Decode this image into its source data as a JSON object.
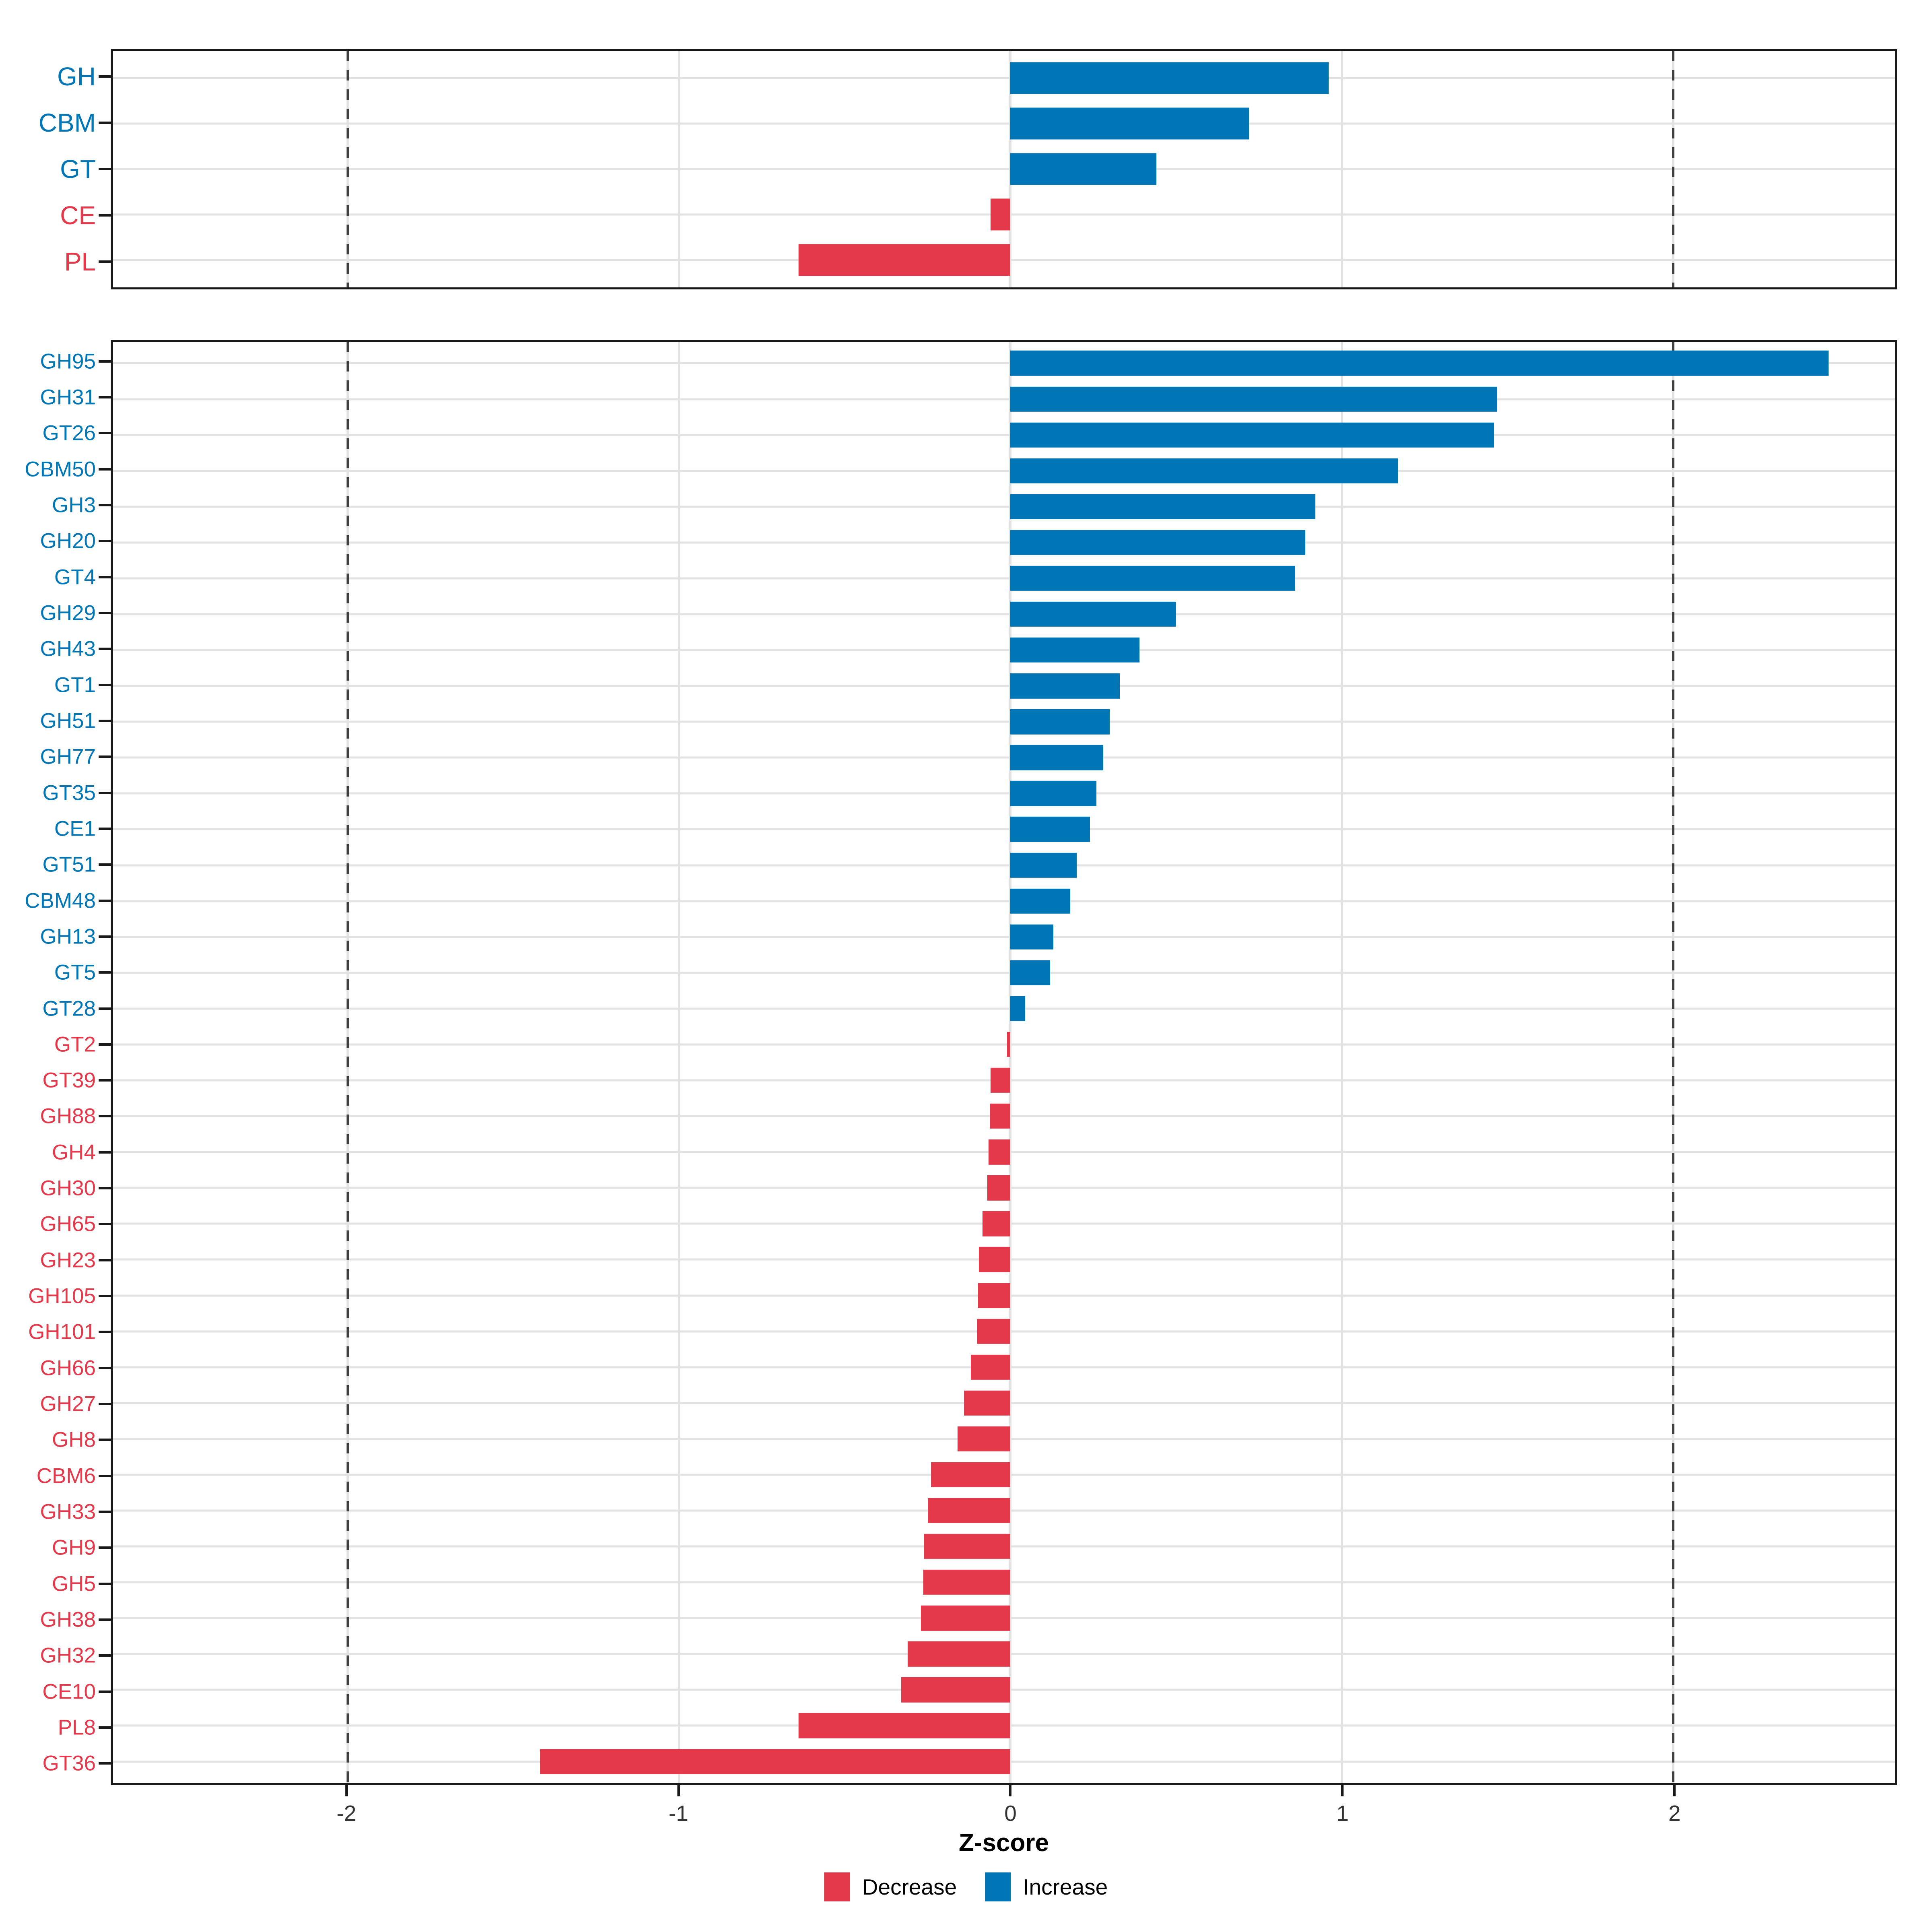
{
  "axis": {
    "label": "Z-score",
    "domain": [
      -2.71,
      2.67
    ],
    "ticks": [
      {
        "value": -2,
        "label": "-2"
      },
      {
        "value": -1,
        "label": "-1"
      },
      {
        "value": 0,
        "label": "0"
      },
      {
        "value": 1,
        "label": "1"
      },
      {
        "value": 2,
        "label": "2"
      }
    ],
    "dashed_lines_at": [
      -2,
      2
    ],
    "grid_on": true
  },
  "colors": {
    "increase": "#0076b6",
    "decrease": "#e4394b",
    "grid": "#e2e2e2",
    "dashed_line": "#404040",
    "panel_border": "#1a1a1a",
    "tick_text": "#333333"
  },
  "legend": {
    "items": [
      {
        "label": "Decrease",
        "color": "#e4394b",
        "direction": "decrease"
      },
      {
        "label": "Increase",
        "color": "#0076b6",
        "direction": "increase"
      }
    ]
  },
  "chart_data": [
    {
      "type": "bar",
      "orientation": "horizontal",
      "panel": "top",
      "title": "",
      "xlabel": "Z-score",
      "ylabel": "",
      "xlim": [
        -2.71,
        2.67
      ],
      "categories": [
        "GH",
        "CBM",
        "GT",
        "CE",
        "PL"
      ],
      "values": [
        0.96,
        0.72,
        0.44,
        -0.06,
        -0.64
      ],
      "directions": [
        "increase",
        "increase",
        "increase",
        "decrease",
        "decrease"
      ]
    },
    {
      "type": "bar",
      "orientation": "horizontal",
      "panel": "bottom",
      "title": "",
      "xlabel": "Z-score",
      "ylabel": "",
      "xlim": [
        -2.71,
        2.67
      ],
      "categories": [
        "GH95",
        "GH31",
        "GT26",
        "CBM50",
        "GH3",
        "GH20",
        "GT4",
        "GH29",
        "GH43",
        "GT1",
        "GH51",
        "GH77",
        "GT35",
        "CE1",
        "GT51",
        "CBM48",
        "GH13",
        "GT5",
        "GT28",
        "GT2",
        "GT39",
        "GH88",
        "GH4",
        "GH30",
        "GH65",
        "GH23",
        "GH105",
        "GH101",
        "GH66",
        "GH27",
        "GH8",
        "CBM6",
        "GH33",
        "GH9",
        "GH5",
        "GH38",
        "GH32",
        "CE10",
        "PL8",
        "GT36"
      ],
      "values": [
        2.47,
        1.47,
        1.46,
        1.17,
        0.92,
        0.89,
        0.86,
        0.5,
        0.39,
        0.33,
        0.3,
        0.28,
        0.26,
        0.24,
        0.2,
        0.18,
        0.13,
        0.12,
        0.045,
        -0.01,
        -0.06,
        -0.063,
        -0.066,
        -0.07,
        -0.085,
        -0.095,
        -0.098,
        -0.1,
        -0.12,
        -0.14,
        -0.16,
        -0.24,
        -0.25,
        -0.26,
        -0.263,
        -0.27,
        -0.31,
        -0.33,
        -0.64,
        -1.42
      ],
      "directions": [
        "increase",
        "increase",
        "increase",
        "increase",
        "increase",
        "increase",
        "increase",
        "increase",
        "increase",
        "increase",
        "increase",
        "increase",
        "increase",
        "increase",
        "increase",
        "increase",
        "increase",
        "increase",
        "increase",
        "decrease",
        "decrease",
        "decrease",
        "decrease",
        "decrease",
        "decrease",
        "decrease",
        "decrease",
        "decrease",
        "decrease",
        "decrease",
        "decrease",
        "decrease",
        "decrease",
        "decrease",
        "decrease",
        "decrease",
        "decrease",
        "decrease",
        "decrease",
        "decrease"
      ]
    }
  ]
}
